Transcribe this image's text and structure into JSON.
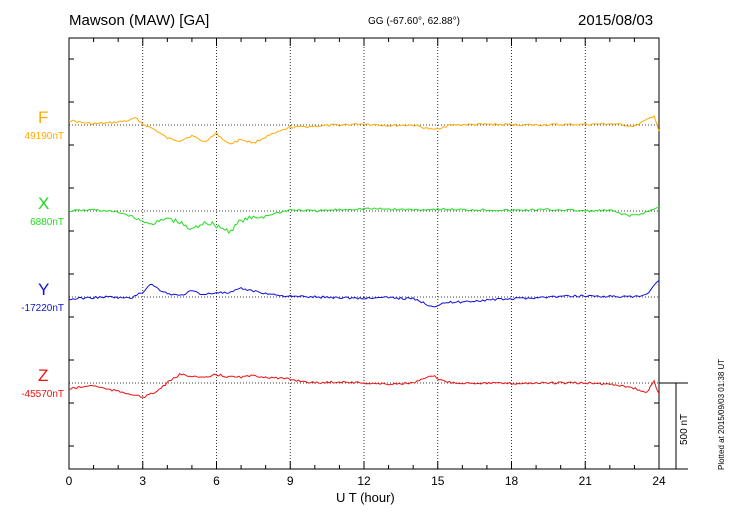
{
  "header": {
    "station": "Mawson (MAW)  [GA]",
    "coords": "GG (-67.60°,  62.88°)",
    "date": "2015/08/03"
  },
  "plotted_note": "Plotted at 2015/09/03 01:38 UT",
  "scale_bar": {
    "label": "500 nT",
    "value_nT": 500
  },
  "chart_data": {
    "type": "line",
    "xlabel": "U T (hour)",
    "xlim": [
      0,
      24
    ],
    "xticks": [
      0,
      3,
      6,
      9,
      12,
      15,
      18,
      21,
      24
    ],
    "grid": "dotted vertical lines every 3 hours; dotted baseline per component",
    "units": "nT",
    "series": [
      {
        "name": "F",
        "baseline_label": "49190nT",
        "baseline_nT": 49190,
        "color": "#ffaa00",
        "x": [
          0,
          0.5,
          1,
          1.5,
          2,
          2.5,
          2.7,
          3,
          3.5,
          4,
          4.5,
          5,
          5.5,
          6,
          6.5,
          7,
          7.5,
          8,
          8.5,
          9,
          10,
          11,
          12,
          13,
          14,
          14.8,
          15.5,
          17,
          19,
          21,
          22,
          23,
          23.5,
          23.8,
          24
        ],
        "y": [
          49230,
          49210,
          49200,
          49205,
          49215,
          49230,
          49250,
          49200,
          49150,
          49080,
          49060,
          49100,
          49050,
          49120,
          49030,
          49070,
          49040,
          49090,
          49130,
          49170,
          49180,
          49190,
          49200,
          49185,
          49190,
          49150,
          49190,
          49195,
          49190,
          49195,
          49200,
          49180,
          49230,
          49270,
          49140
        ]
      },
      {
        "name": "X",
        "baseline_label": "6880nT",
        "baseline_nT": 6880,
        "color": "#22dd22",
        "x": [
          0,
          1,
          2,
          2.5,
          3,
          3.5,
          4,
          4.5,
          5,
          5.5,
          6,
          6.5,
          7,
          7.5,
          8,
          9,
          10,
          11,
          12,
          13,
          14,
          15,
          16,
          17,
          18,
          19,
          20,
          21,
          22,
          22.8,
          23.2,
          23.6,
          24
        ],
        "y": [
          6880,
          6890,
          6870,
          6840,
          6790,
          6770,
          6820,
          6780,
          6720,
          6790,
          6760,
          6710,
          6800,
          6820,
          6840,
          6890,
          6880,
          6890,
          6900,
          6895,
          6890,
          6895,
          6890,
          6890,
          6885,
          6890,
          6890,
          6880,
          6885,
          6840,
          6850,
          6880,
          6910
        ]
      },
      {
        "name": "Y",
        "baseline_label": "-17220nT",
        "baseline_nT": -17220,
        "color": "#1111dd",
        "x": [
          0,
          0.5,
          1,
          1.5,
          2,
          2.5,
          3,
          3.3,
          3.7,
          4,
          4.5,
          5,
          5.5,
          6,
          6.5,
          7,
          7.5,
          8,
          8.5,
          9,
          10,
          11,
          12,
          13,
          14,
          14.5,
          14.8,
          15.2,
          16,
          17,
          18,
          19,
          20,
          21,
          22,
          23,
          23.5,
          24
        ],
        "y": [
          -17240,
          -17230,
          -17225,
          -17220,
          -17225,
          -17230,
          -17180,
          -17110,
          -17160,
          -17190,
          -17210,
          -17170,
          -17200,
          -17180,
          -17190,
          -17150,
          -17170,
          -17190,
          -17205,
          -17215,
          -17220,
          -17225,
          -17230,
          -17225,
          -17235,
          -17275,
          -17300,
          -17270,
          -17260,
          -17245,
          -17235,
          -17225,
          -17215,
          -17210,
          -17215,
          -17220,
          -17200,
          -17080
        ]
      },
      {
        "name": "Z",
        "baseline_label": "-45570nT",
        "baseline_nT": -45570,
        "color": "#ee1111",
        "x": [
          0,
          0.3,
          1,
          1.5,
          2,
          2.5,
          3,
          3.5,
          4,
          4.5,
          5,
          5.5,
          6,
          6.5,
          7,
          7.5,
          8,
          9,
          10,
          11,
          12,
          13,
          14,
          14.8,
          15.3,
          16,
          17,
          18,
          19,
          20,
          21,
          22,
          22.8,
          23.2,
          23.5,
          23.8,
          24
        ],
        "y": [
          -45620,
          -45610,
          -45590,
          -45620,
          -45640,
          -45660,
          -45690,
          -45650,
          -45570,
          -45500,
          -45510,
          -45530,
          -45500,
          -45520,
          -45520,
          -45510,
          -45520,
          -45540,
          -45570,
          -45560,
          -45570,
          -45580,
          -45570,
          -45510,
          -45560,
          -45570,
          -45570,
          -45575,
          -45570,
          -45570,
          -45570,
          -45580,
          -45600,
          -45630,
          -45650,
          -45560,
          -45660
        ]
      }
    ]
  }
}
